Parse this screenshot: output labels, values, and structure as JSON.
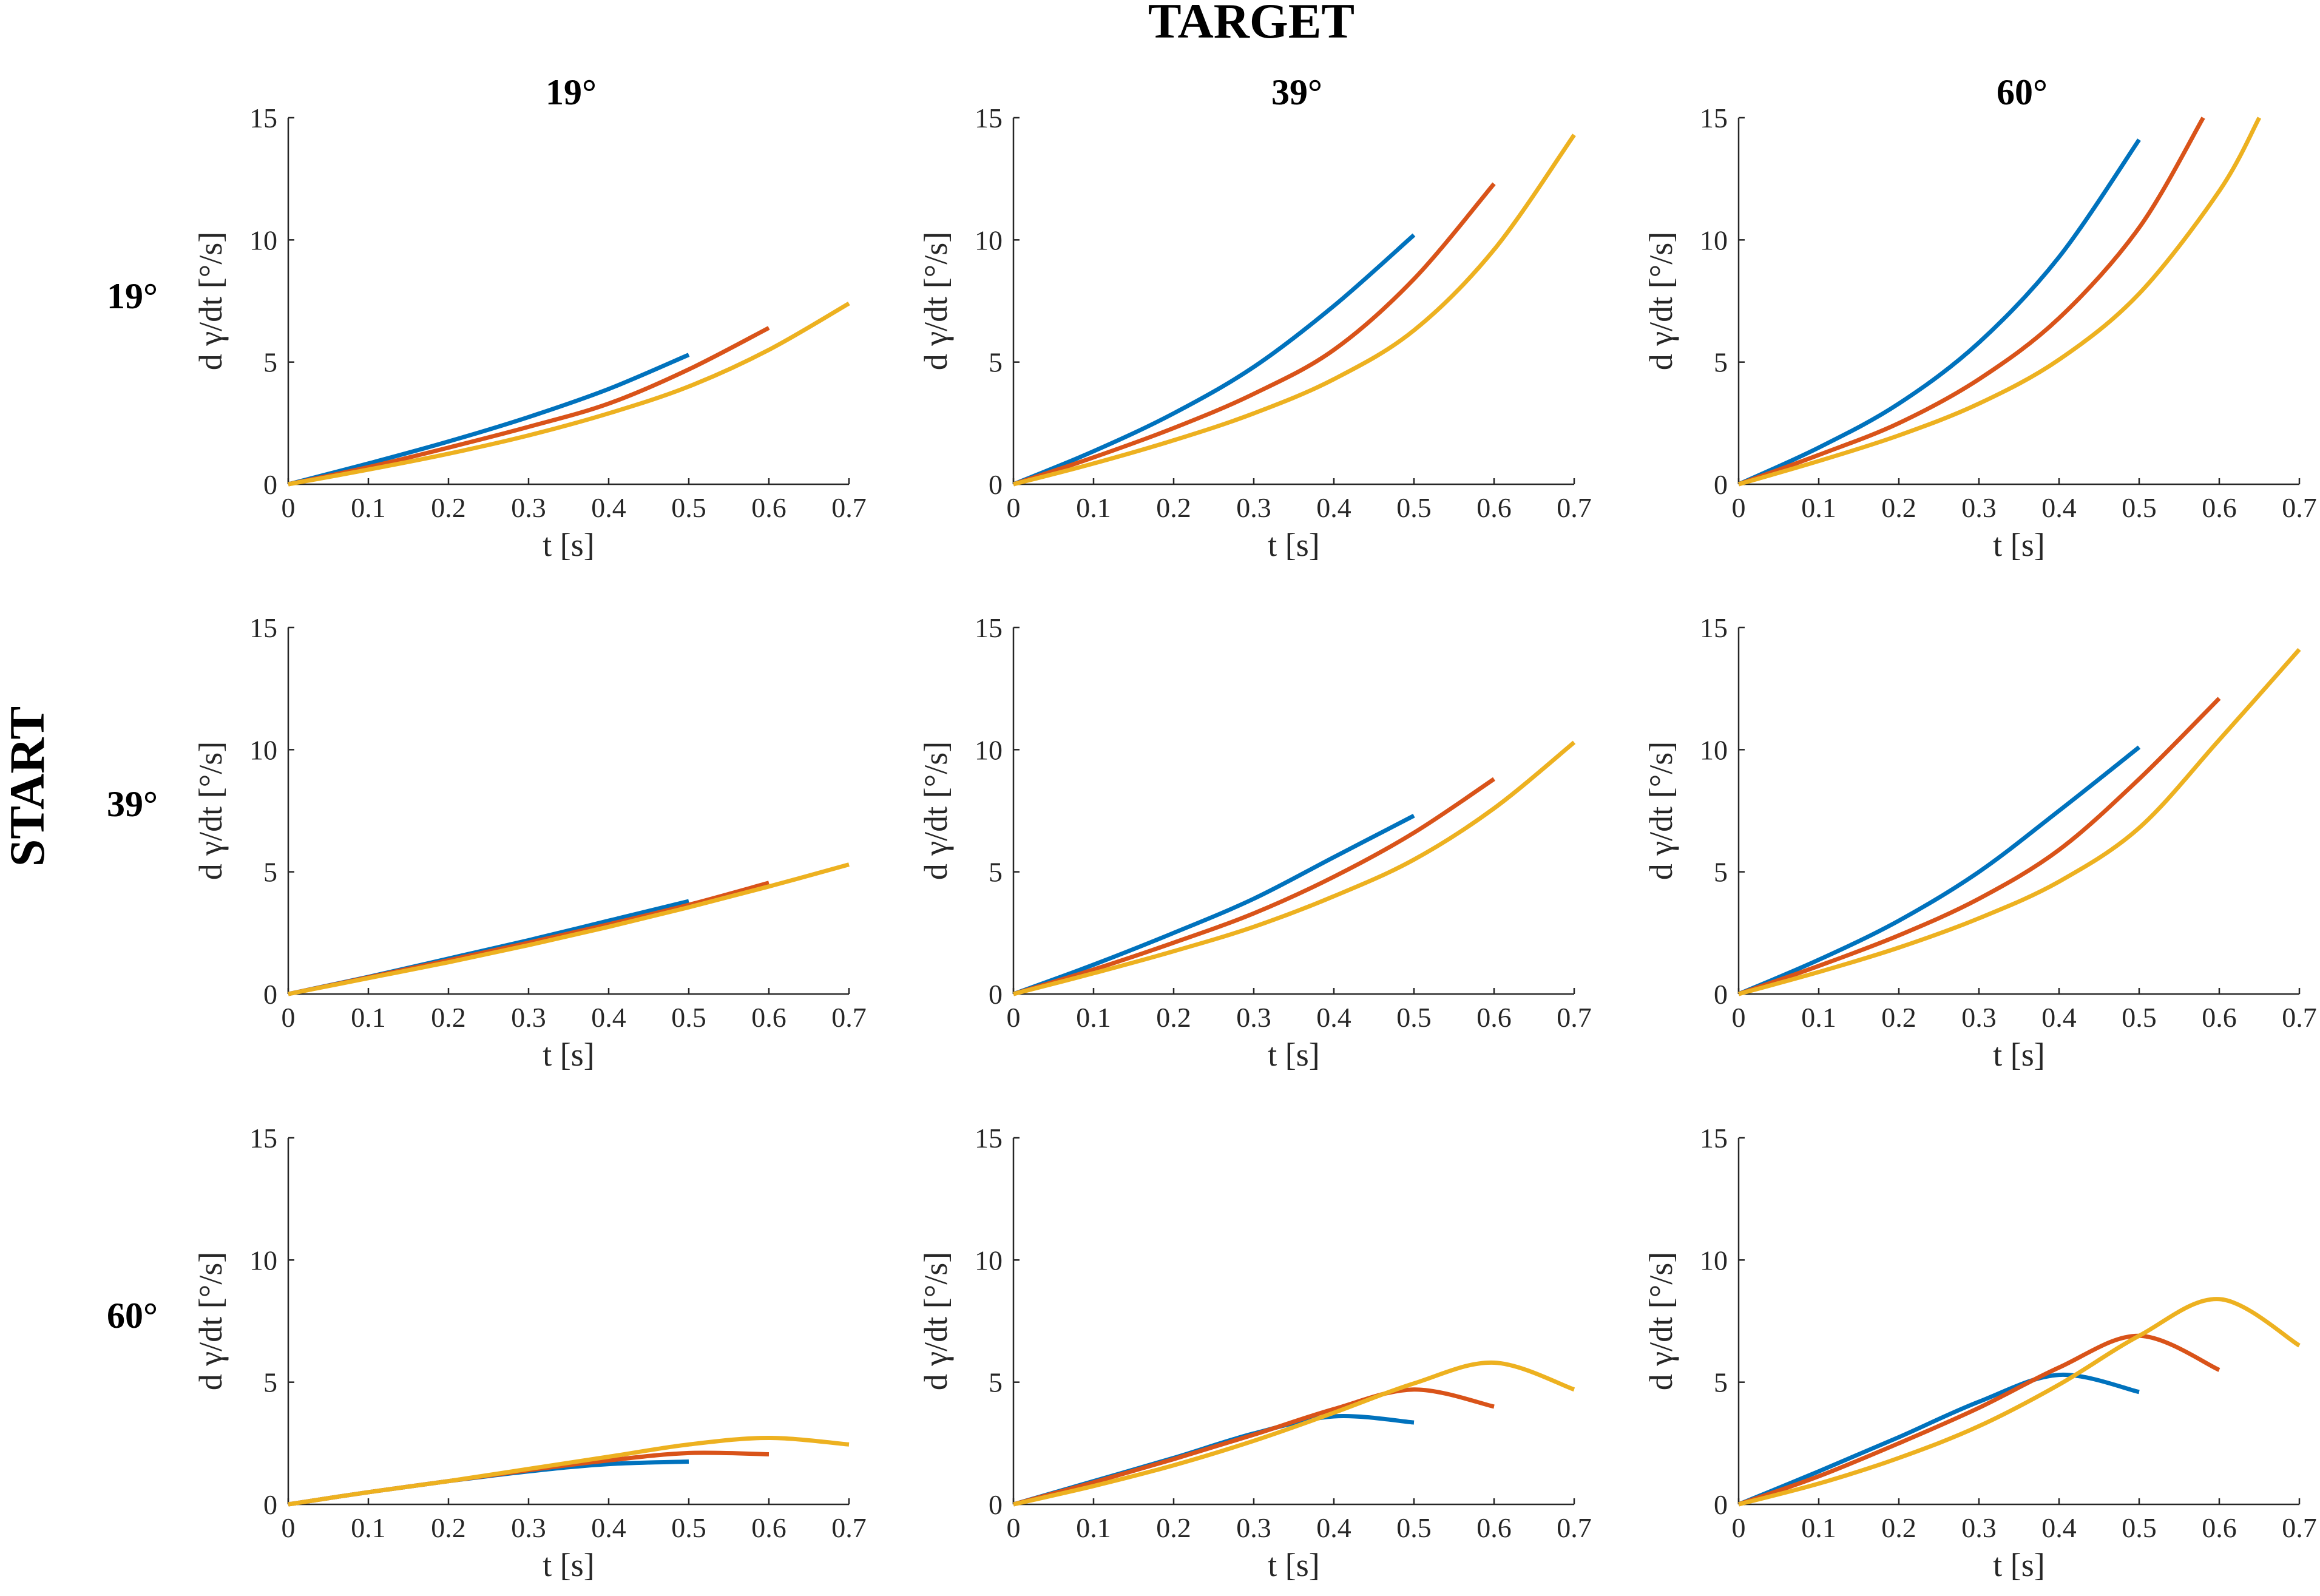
{
  "figure": {
    "target_label": "TARGET",
    "start_label": "START",
    "column_titles": [
      "19°",
      "39°",
      "60°"
    ],
    "row_titles": [
      "19°",
      "39°",
      "60°"
    ],
    "colors": {
      "series1": "#0072BD",
      "series2": "#D95319",
      "series3": "#EDB120",
      "axis": "#262626"
    }
  },
  "chart_data": [
    {
      "type": "line",
      "row": "19°",
      "col": "19°",
      "xlabel": "t [s]",
      "ylabel": "d γ/dt  [°/s]",
      "xlim": [
        0,
        0.7
      ],
      "ylim": [
        0,
        15
      ],
      "xticks": [
        0,
        0.1,
        0.2,
        0.3,
        0.4,
        0.5,
        0.6,
        0.7
      ],
      "yticks": [
        0,
        5,
        10,
        15
      ],
      "series": [
        {
          "name": "series1",
          "x": [
            0,
            0.1,
            0.2,
            0.3,
            0.4,
            0.5
          ],
          "y": [
            0,
            0.85,
            1.75,
            2.75,
            3.9,
            5.3
          ]
        },
        {
          "name": "series2",
          "x": [
            0,
            0.1,
            0.2,
            0.3,
            0.4,
            0.5,
            0.6
          ],
          "y": [
            0,
            0.7,
            1.5,
            2.35,
            3.3,
            4.7,
            6.4
          ]
        },
        {
          "name": "series3",
          "x": [
            0,
            0.1,
            0.2,
            0.3,
            0.4,
            0.5,
            0.6,
            0.7
          ],
          "y": [
            0,
            0.6,
            1.25,
            2.0,
            2.9,
            4.0,
            5.5,
            7.4
          ]
        }
      ]
    },
    {
      "type": "line",
      "row": "19°",
      "col": "39°",
      "xlabel": "t [s]",
      "ylabel": "d γ/dt  [°/s]",
      "xlim": [
        0,
        0.7
      ],
      "ylim": [
        0,
        15
      ],
      "xticks": [
        0,
        0.1,
        0.2,
        0.3,
        0.4,
        0.5,
        0.6,
        0.7
      ],
      "yticks": [
        0,
        5,
        10,
        15
      ],
      "series": [
        {
          "name": "series1",
          "x": [
            0,
            0.1,
            0.2,
            0.3,
            0.4,
            0.5
          ],
          "y": [
            0,
            1.35,
            2.9,
            4.8,
            7.3,
            10.2
          ]
        },
        {
          "name": "series2",
          "x": [
            0,
            0.1,
            0.2,
            0.3,
            0.4,
            0.5,
            0.6
          ],
          "y": [
            0,
            1.1,
            2.3,
            3.7,
            5.5,
            8.4,
            12.3
          ]
        },
        {
          "name": "series3",
          "x": [
            0,
            0.1,
            0.2,
            0.3,
            0.4,
            0.5,
            0.6,
            0.7
          ],
          "y": [
            0,
            0.85,
            1.8,
            2.9,
            4.3,
            6.3,
            9.6,
            14.3
          ]
        }
      ]
    },
    {
      "type": "line",
      "row": "19°",
      "col": "60°",
      "xlabel": "t [s]",
      "ylabel": "d γ/dt  [°/s]",
      "xlim": [
        0,
        0.7
      ],
      "ylim": [
        0,
        15
      ],
      "xticks": [
        0,
        0.1,
        0.2,
        0.3,
        0.4,
        0.5,
        0.6,
        0.7
      ],
      "yticks": [
        0,
        5,
        10,
        15
      ],
      "series": [
        {
          "name": "series1",
          "x": [
            0,
            0.1,
            0.2,
            0.3,
            0.4,
            0.5
          ],
          "y": [
            0,
            1.5,
            3.3,
            5.8,
            9.3,
            14.1
          ]
        },
        {
          "name": "series2",
          "x": [
            0,
            0.1,
            0.2,
            0.3,
            0.4,
            0.5,
            0.58
          ],
          "y": [
            0,
            1.2,
            2.5,
            4.3,
            6.8,
            10.5,
            15
          ]
        },
        {
          "name": "series3",
          "x": [
            0,
            0.1,
            0.2,
            0.3,
            0.4,
            0.5,
            0.6,
            0.65
          ],
          "y": [
            0,
            0.95,
            2.0,
            3.3,
            5.1,
            7.8,
            12.0,
            15
          ]
        }
      ]
    },
    {
      "type": "line",
      "row": "39°",
      "col": "19°",
      "xlabel": "t [s]",
      "ylabel": "d γ/dt  [°/s]",
      "xlim": [
        0,
        0.7
      ],
      "ylim": [
        0,
        15
      ],
      "xticks": [
        0,
        0.1,
        0.2,
        0.3,
        0.4,
        0.5,
        0.6,
        0.7
      ],
      "yticks": [
        0,
        5,
        10,
        15
      ],
      "series": [
        {
          "name": "series1",
          "x": [
            0,
            0.1,
            0.2,
            0.3,
            0.4,
            0.5
          ],
          "y": [
            0,
            0.7,
            1.45,
            2.2,
            3.0,
            3.8
          ]
        },
        {
          "name": "series2",
          "x": [
            0,
            0.1,
            0.2,
            0.3,
            0.4,
            0.5,
            0.6
          ],
          "y": [
            0,
            0.68,
            1.38,
            2.1,
            2.85,
            3.65,
            4.55
          ]
        },
        {
          "name": "series3",
          "x": [
            0,
            0.1,
            0.2,
            0.3,
            0.4,
            0.5,
            0.6,
            0.7
          ],
          "y": [
            0,
            0.65,
            1.3,
            2.0,
            2.75,
            3.55,
            4.4,
            5.3
          ]
        }
      ]
    },
    {
      "type": "line",
      "row": "39°",
      "col": "39°",
      "xlabel": "t [s]",
      "ylabel": "d γ/dt  [°/s]",
      "xlim": [
        0,
        0.7
      ],
      "ylim": [
        0,
        15
      ],
      "xticks": [
        0,
        0.1,
        0.2,
        0.3,
        0.4,
        0.5,
        0.6,
        0.7
      ],
      "yticks": [
        0,
        5,
        10,
        15
      ],
      "series": [
        {
          "name": "series1",
          "x": [
            0,
            0.1,
            0.2,
            0.3,
            0.4,
            0.5
          ],
          "y": [
            0,
            1.2,
            2.5,
            3.9,
            5.6,
            7.3
          ]
        },
        {
          "name": "series2",
          "x": [
            0,
            0.1,
            0.2,
            0.3,
            0.4,
            0.5,
            0.6
          ],
          "y": [
            0,
            1.0,
            2.1,
            3.3,
            4.8,
            6.6,
            8.8
          ]
        },
        {
          "name": "series3",
          "x": [
            0,
            0.1,
            0.2,
            0.3,
            0.4,
            0.5,
            0.6,
            0.7
          ],
          "y": [
            0,
            0.85,
            1.75,
            2.75,
            4.0,
            5.5,
            7.6,
            10.3
          ]
        }
      ]
    },
    {
      "type": "line",
      "row": "39°",
      "col": "60°",
      "xlabel": "t [s]",
      "ylabel": "d γ/dt  [°/s]",
      "xlim": [
        0,
        0.7
      ],
      "ylim": [
        0,
        15
      ],
      "xticks": [
        0,
        0.1,
        0.2,
        0.3,
        0.4,
        0.5,
        0.6,
        0.7
      ],
      "yticks": [
        0,
        5,
        10,
        15
      ],
      "series": [
        {
          "name": "series1",
          "x": [
            0,
            0.1,
            0.2,
            0.3,
            0.4,
            0.5
          ],
          "y": [
            0,
            1.4,
            3.0,
            5.0,
            7.5,
            10.1
          ]
        },
        {
          "name": "series2",
          "x": [
            0,
            0.1,
            0.2,
            0.3,
            0.4,
            0.5,
            0.6
          ],
          "y": [
            0,
            1.15,
            2.4,
            3.9,
            5.9,
            8.8,
            12.1
          ]
        },
        {
          "name": "series3",
          "x": [
            0,
            0.1,
            0.2,
            0.3,
            0.4,
            0.5,
            0.6,
            0.7
          ],
          "y": [
            0,
            0.9,
            1.9,
            3.1,
            4.6,
            6.8,
            10.4,
            14.1
          ]
        }
      ]
    },
    {
      "type": "line",
      "row": "60°",
      "col": "19°",
      "xlabel": "t [s]",
      "ylabel": "d γ/dt  [°/s]",
      "xlim": [
        0,
        0.7
      ],
      "ylim": [
        0,
        15
      ],
      "xticks": [
        0,
        0.1,
        0.2,
        0.3,
        0.4,
        0.5,
        0.6,
        0.7
      ],
      "yticks": [
        0,
        5,
        10,
        15
      ],
      "series": [
        {
          "name": "series1",
          "x": [
            0,
            0.1,
            0.2,
            0.3,
            0.4,
            0.5
          ],
          "y": [
            0,
            0.5,
            0.95,
            1.35,
            1.65,
            1.75
          ]
        },
        {
          "name": "series2",
          "x": [
            0,
            0.1,
            0.2,
            0.3,
            0.4,
            0.5,
            0.6
          ],
          "y": [
            0,
            0.5,
            0.95,
            1.4,
            1.8,
            2.1,
            2.05
          ]
        },
        {
          "name": "series3",
          "x": [
            0,
            0.1,
            0.2,
            0.3,
            0.4,
            0.5,
            0.6,
            0.7
          ],
          "y": [
            0,
            0.5,
            0.95,
            1.45,
            1.95,
            2.45,
            2.72,
            2.45
          ]
        }
      ]
    },
    {
      "type": "line",
      "row": "60°",
      "col": "39°",
      "xlabel": "t [s]",
      "ylabel": "d γ/dt  [°/s]",
      "xlim": [
        0,
        0.7
      ],
      "ylim": [
        0,
        15
      ],
      "xticks": [
        0,
        0.1,
        0.2,
        0.3,
        0.4,
        0.5,
        0.6,
        0.7
      ],
      "yticks": [
        0,
        5,
        10,
        15
      ],
      "series": [
        {
          "name": "series1",
          "x": [
            0,
            0.1,
            0.2,
            0.3,
            0.4,
            0.5
          ],
          "y": [
            0,
            0.95,
            1.9,
            2.9,
            3.6,
            3.35
          ]
        },
        {
          "name": "series2",
          "x": [
            0,
            0.1,
            0.2,
            0.3,
            0.4,
            0.5,
            0.6
          ],
          "y": [
            0,
            0.9,
            1.85,
            2.85,
            3.9,
            4.7,
            4.0
          ]
        },
        {
          "name": "series3",
          "x": [
            0,
            0.1,
            0.2,
            0.3,
            0.4,
            0.5,
            0.6,
            0.7
          ],
          "y": [
            0,
            0.75,
            1.6,
            2.6,
            3.75,
            4.95,
            5.8,
            4.7
          ]
        }
      ]
    },
    {
      "type": "line",
      "row": "60°",
      "col": "60°",
      "xlabel": "t [s]",
      "ylabel": "d γ/dt  [°/s]",
      "xlim": [
        0,
        0.7
      ],
      "ylim": [
        0,
        15
      ],
      "xticks": [
        0,
        0.1,
        0.2,
        0.3,
        0.4,
        0.5,
        0.6,
        0.7
      ],
      "yticks": [
        0,
        5,
        10,
        15
      ],
      "series": [
        {
          "name": "series1",
          "x": [
            0,
            0.1,
            0.2,
            0.3,
            0.4,
            0.5
          ],
          "y": [
            0,
            1.35,
            2.75,
            4.2,
            5.3,
            4.6
          ]
        },
        {
          "name": "series2",
          "x": [
            0,
            0.1,
            0.2,
            0.3,
            0.4,
            0.5,
            0.6
          ],
          "y": [
            0,
            1.15,
            2.5,
            3.95,
            5.6,
            6.9,
            5.5
          ]
        },
        {
          "name": "series3",
          "x": [
            0,
            0.1,
            0.2,
            0.3,
            0.4,
            0.5,
            0.6,
            0.7
          ],
          "y": [
            0,
            0.85,
            1.9,
            3.2,
            4.9,
            6.9,
            8.4,
            6.5
          ]
        }
      ]
    }
  ]
}
